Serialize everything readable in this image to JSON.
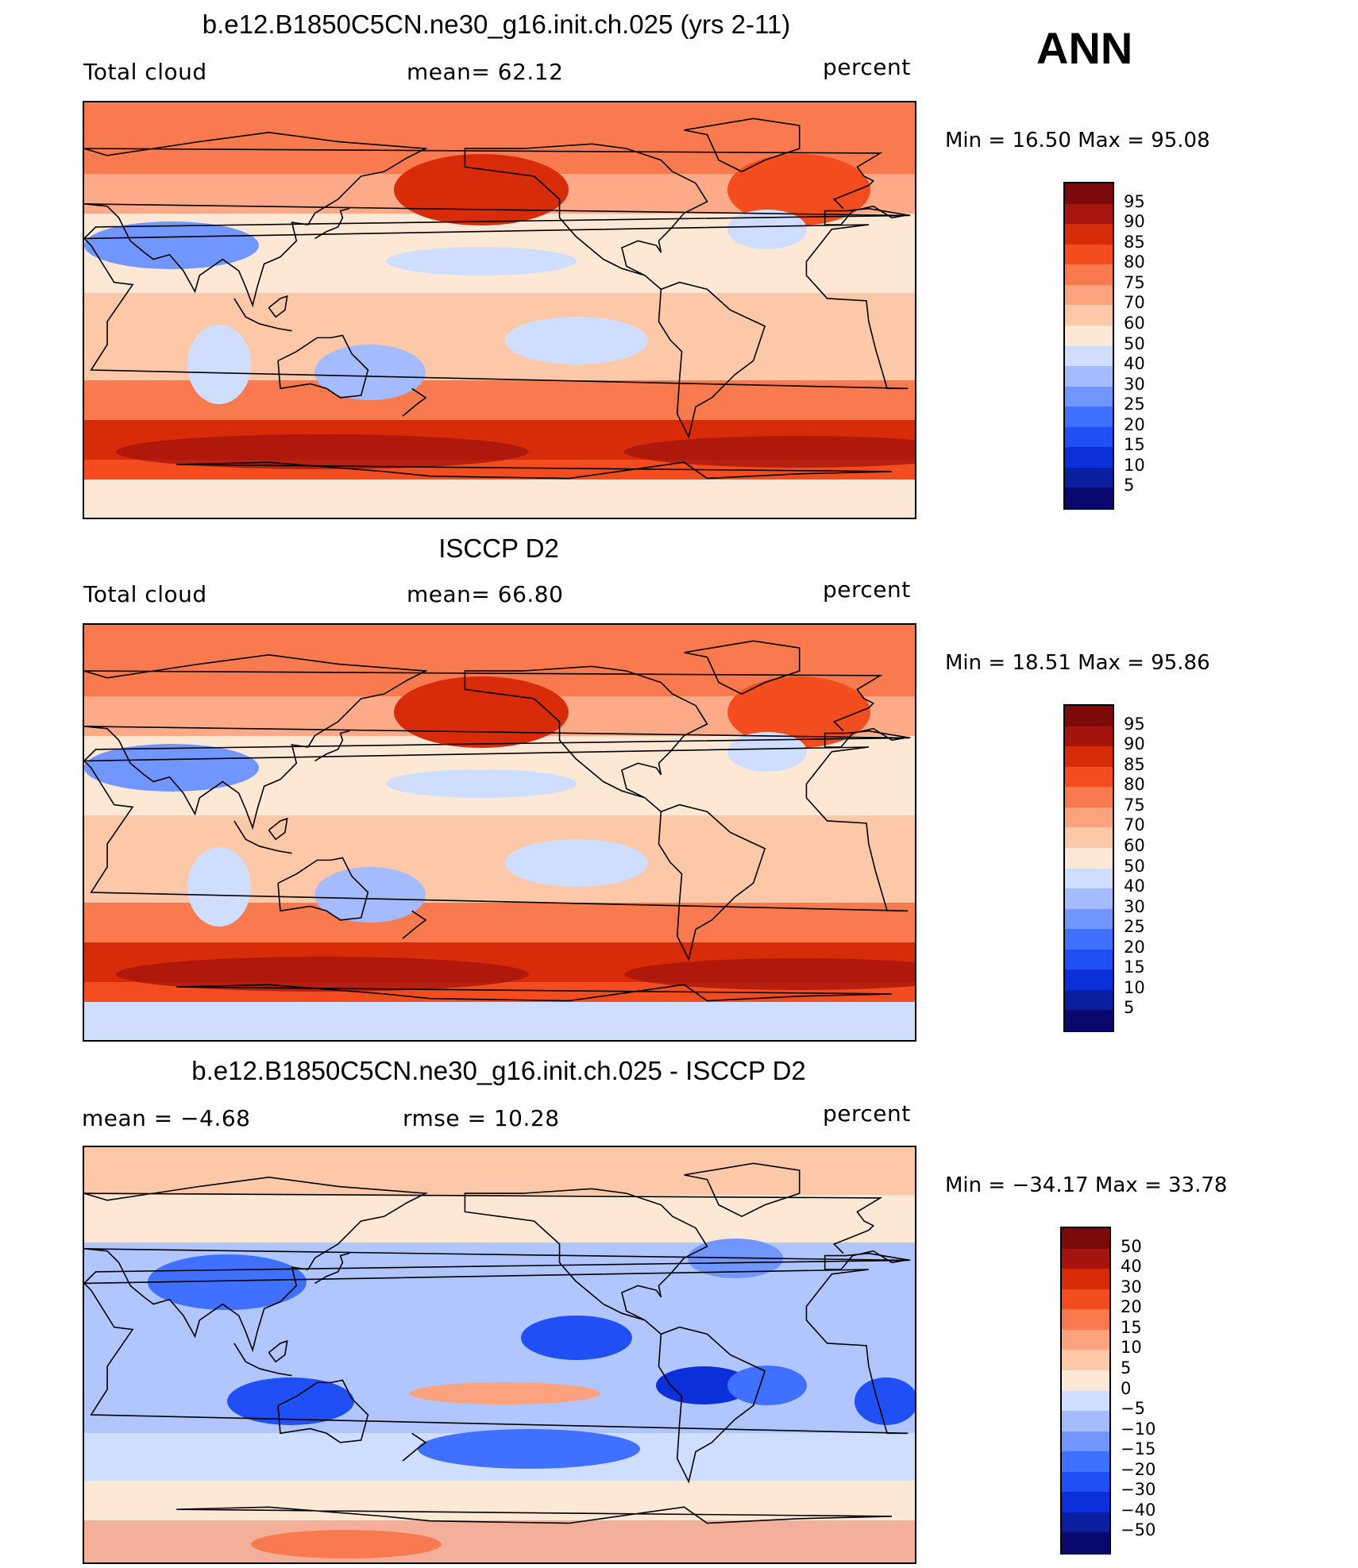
{
  "season": "ANN",
  "palette_seq": [
    "#08086e",
    "#0a1fa0",
    "#0b2fd8",
    "#1f4ff5",
    "#3f70ff",
    "#7296ff",
    "#a4bcff",
    "#cfdeff",
    "#fde8d6",
    "#fdc8a8",
    "#fda27f",
    "#fa7a4f",
    "#f24c1f",
    "#d82b0a",
    "#a5150d",
    "#7d0a0a"
  ],
  "palette_diff": [
    "#08086e",
    "#0a1fa0",
    "#0b2fd8",
    "#1f4ff5",
    "#3f70ff",
    "#7296ff",
    "#a4bcff",
    "#cfdeff",
    "#fde8d6",
    "#fdc8a8",
    "#fda27f",
    "#fa7a4f",
    "#f24c1f",
    "#d82b0a",
    "#a5150d",
    "#7d0a0a"
  ],
  "panels": [
    {
      "title": "b.e12.B1850C5CN.ne30_g16.init.ch.025 (yrs 2-11)",
      "left_label": "Total cloud",
      "center_label": "mean=   62.12",
      "units": "percent",
      "minmax": "Min =    16.50  Max =    95.08",
      "ticks": [
        "95",
        "90",
        "85",
        "80",
        "75",
        "70",
        "60",
        "50",
        "40",
        "30",
        "25",
        "20",
        "15",
        "10",
        "5"
      ],
      "palette": "seq",
      "field": "model"
    },
    {
      "title": "ISCCP D2",
      "left_label": "Total cloud",
      "center_label": "mean=   66.80",
      "units": "percent",
      "minmax": "Min =    18.51  Max =    95.86",
      "ticks": [
        "95",
        "90",
        "85",
        "80",
        "75",
        "70",
        "60",
        "50",
        "40",
        "30",
        "25",
        "20",
        "15",
        "10",
        "5"
      ],
      "palette": "seq",
      "field": "obs"
    },
    {
      "title": "b.e12.B1850C5CN.ne30_g16.init.ch.025 - ISCCP D2",
      "left_label": "mean =   −4.68",
      "center_label": "rmse =   10.28",
      "units": "percent",
      "minmax": "Min = −34.17  Max =    33.78",
      "ticks": [
        "50",
        "40",
        "30",
        "20",
        "15",
        "10",
        "5",
        "0",
        "−5",
        "−10",
        "−15",
        "−20",
        "−30",
        "−40",
        "−50"
      ],
      "palette": "diff",
      "field": "diff"
    }
  ]
}
